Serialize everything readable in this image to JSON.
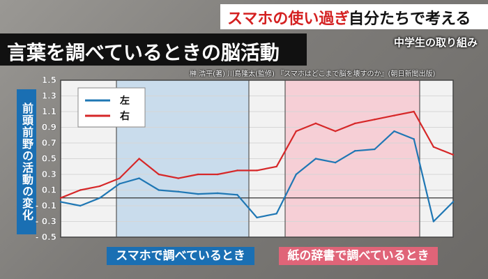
{
  "header": {
    "banner_red": "スマホの使い過ぎ",
    "banner_black": "自分たちで考える",
    "subcaption": "中学生の取り組み",
    "title": "言葉を調べているときの脳活動",
    "credit": "榊 浩平(著) 川島隆太(監修) 『スマホはどこまで脳を壊すのか』(朝日新聞出版)"
  },
  "chart_data": {
    "type": "line",
    "ylabel": "前頭前野の活動の変化",
    "ylim": [
      -0.5,
      1.5
    ],
    "yticks": [
      1.5,
      1.3,
      1.1,
      0.9,
      0.7,
      0.5,
      0.3,
      0.1,
      -0.1,
      -0.3,
      -0.5
    ],
    "ytick_labels": [
      "1.5",
      "1.3",
      "1.1",
      "0.9",
      "0.7",
      "0.5",
      "0.3",
      "0.1",
      "- 0.1",
      "- 0.3",
      "- 0.5"
    ],
    "x": [
      0,
      5,
      10,
      15,
      20,
      25,
      30,
      35,
      40,
      45,
      50,
      55,
      60,
      65,
      70,
      75,
      80,
      85,
      90,
      95,
      100
    ],
    "series": [
      {
        "name": "左",
        "color": "#1f77b4",
        "values": [
          -0.05,
          -0.1,
          0.0,
          0.18,
          0.25,
          0.1,
          0.08,
          0.05,
          0.06,
          0.04,
          -0.25,
          -0.2,
          0.3,
          0.5,
          0.45,
          0.6,
          0.62,
          0.85,
          0.75,
          -0.3,
          -0.05
        ]
      },
      {
        "name": "右",
        "color": "#d62728",
        "values": [
          0.0,
          0.1,
          0.15,
          0.25,
          0.5,
          0.3,
          0.25,
          0.3,
          0.3,
          0.35,
          0.35,
          0.4,
          0.85,
          0.95,
          0.85,
          0.95,
          1.0,
          1.05,
          1.1,
          0.65,
          0.55
        ]
      }
    ],
    "regions": [
      {
        "label": "スマホで調べているとき",
        "color": "#1a6fb3"
      },
      {
        "label": "紙の辞書で調べているとき",
        "color": "#e06478"
      }
    ],
    "grid": true,
    "legend": "top-left"
  }
}
